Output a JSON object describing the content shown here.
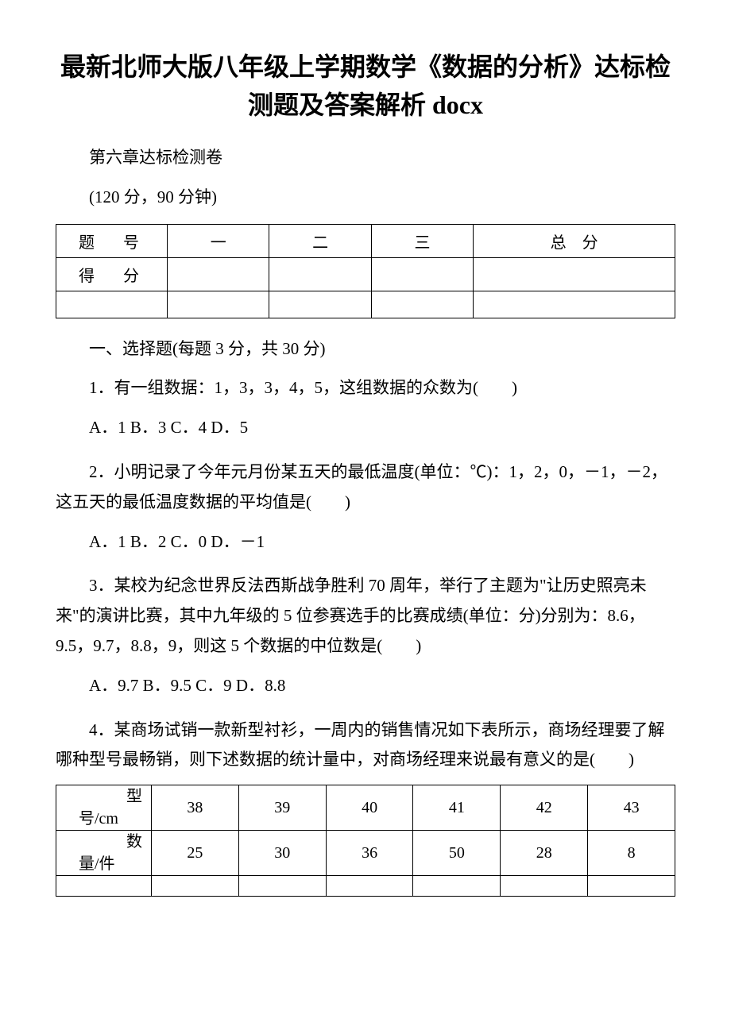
{
  "title": "最新北师大版八年级上学期数学《数据的分析》达标检测题及答案解析 docx",
  "subtitle": "第六章达标检测卷",
  "examInfo": "(120 分，90 分钟)",
  "scoreTable": {
    "columns": [
      "题　号",
      "一",
      "二",
      "三",
      "总　分"
    ],
    "row2Label": "得　分",
    "border_color": "#000000",
    "background_color": "#ffffff"
  },
  "sectionHeading": "一、选择题(每题 3 分，共 30 分)",
  "questions": {
    "q1": {
      "text": "1．有一组数据：1，3，3，4，5，这组数据的众数为(　　)",
      "options": "A．1 B．3 C．4 D．5"
    },
    "q2": {
      "text": "2．小明记录了今年元月份某五天的最低温度(单位：℃)：1，2，0，－1，－2，这五天的最低温度数据的平均值是(　　)",
      "options": "A．1 B．2 C．0 D．－1"
    },
    "q3": {
      "text": "3．某校为纪念世界反法西斯战争胜利 70 周年，举行了主题为\"让历史照亮未来\"的演讲比赛，其中九年级的 5 位参赛选手的比赛成绩(单位：分)分别为：8.6，9.5，9.7，8.8，9，则这 5 个数据的中位数是(　　)",
      "options": "A．9.7 B．9.5 C．9 D．8.8"
    },
    "q4": {
      "text": "4．某商场试销一款新型衬衫，一周内的销售情况如下表所示，商场经理要了解哪种型号最畅销，则下述数据的统计量中，对商场经理来说最有意义的是(　　)"
    }
  },
  "dataTable": {
    "type": "table",
    "columns": [
      "型号/cm",
      "38",
      "39",
      "40",
      "41",
      "42",
      "43"
    ],
    "rows": [
      [
        "数量/件",
        "25",
        "30",
        "36",
        "50",
        "28",
        "8"
      ]
    ],
    "row1Label": "型",
    "row1Label2": "号/cm",
    "row2Label": "数",
    "row2Label2": "量/件",
    "border_color": "#000000",
    "background_color": "#ffffff",
    "text_fontsize": 20
  },
  "colors": {
    "text": "#000000",
    "background": "#ffffff",
    "table_border": "#000000"
  },
  "typography": {
    "title_fontsize": 32,
    "body_fontsize": 21,
    "table_fontsize": 20,
    "font_family": "SimSun"
  }
}
